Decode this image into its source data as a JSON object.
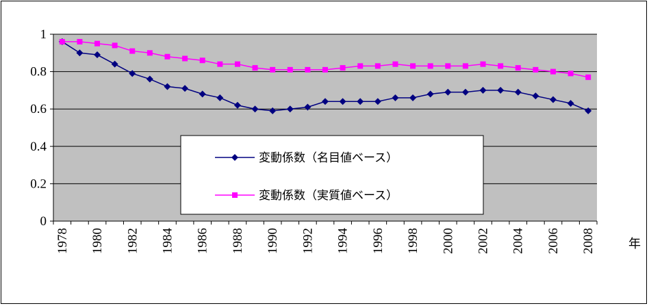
{
  "chart_data": {
    "type": "line",
    "x_unit_label": "年",
    "ylim": [
      0,
      1
    ],
    "yticks": [
      "0",
      "0.2",
      "0.4",
      "0.6",
      "0.8",
      "1"
    ],
    "x": [
      1978,
      1979,
      1980,
      1981,
      1982,
      1983,
      1984,
      1985,
      1986,
      1987,
      1988,
      1989,
      1990,
      1991,
      1992,
      1993,
      1994,
      1995,
      1996,
      1997,
      1998,
      1999,
      2000,
      2001,
      2002,
      2003,
      2004,
      2005,
      2006,
      2007,
      2008
    ],
    "xticks": [
      "1978",
      "1980",
      "1982",
      "1984",
      "1986",
      "1988",
      "1990",
      "1992",
      "1994",
      "1996",
      "1998",
      "2000",
      "2002",
      "2004",
      "2006",
      "2008"
    ],
    "grid": true,
    "plot_background": "#c0c0c0",
    "legend_position": "center-bottom",
    "series": [
      {
        "name": "変動係数（名目値ベース）",
        "color": "#000080",
        "marker": "diamond",
        "values": [
          0.96,
          0.9,
          0.89,
          0.84,
          0.79,
          0.76,
          0.72,
          0.71,
          0.68,
          0.66,
          0.62,
          0.6,
          0.59,
          0.6,
          0.61,
          0.64,
          0.64,
          0.64,
          0.64,
          0.66,
          0.66,
          0.68,
          0.69,
          0.69,
          0.7,
          0.7,
          0.69,
          0.67,
          0.65,
          0.63,
          0.59
        ]
      },
      {
        "name": "変動係数（実質値ベース）",
        "color": "#ff00ff",
        "marker": "square",
        "values": [
          0.96,
          0.96,
          0.95,
          0.94,
          0.91,
          0.9,
          0.88,
          0.87,
          0.86,
          0.84,
          0.84,
          0.82,
          0.81,
          0.81,
          0.81,
          0.81,
          0.82,
          0.83,
          0.83,
          0.84,
          0.83,
          0.83,
          0.83,
          0.83,
          0.84,
          0.83,
          0.82,
          0.81,
          0.8,
          0.79,
          0.77
        ]
      }
    ]
  }
}
